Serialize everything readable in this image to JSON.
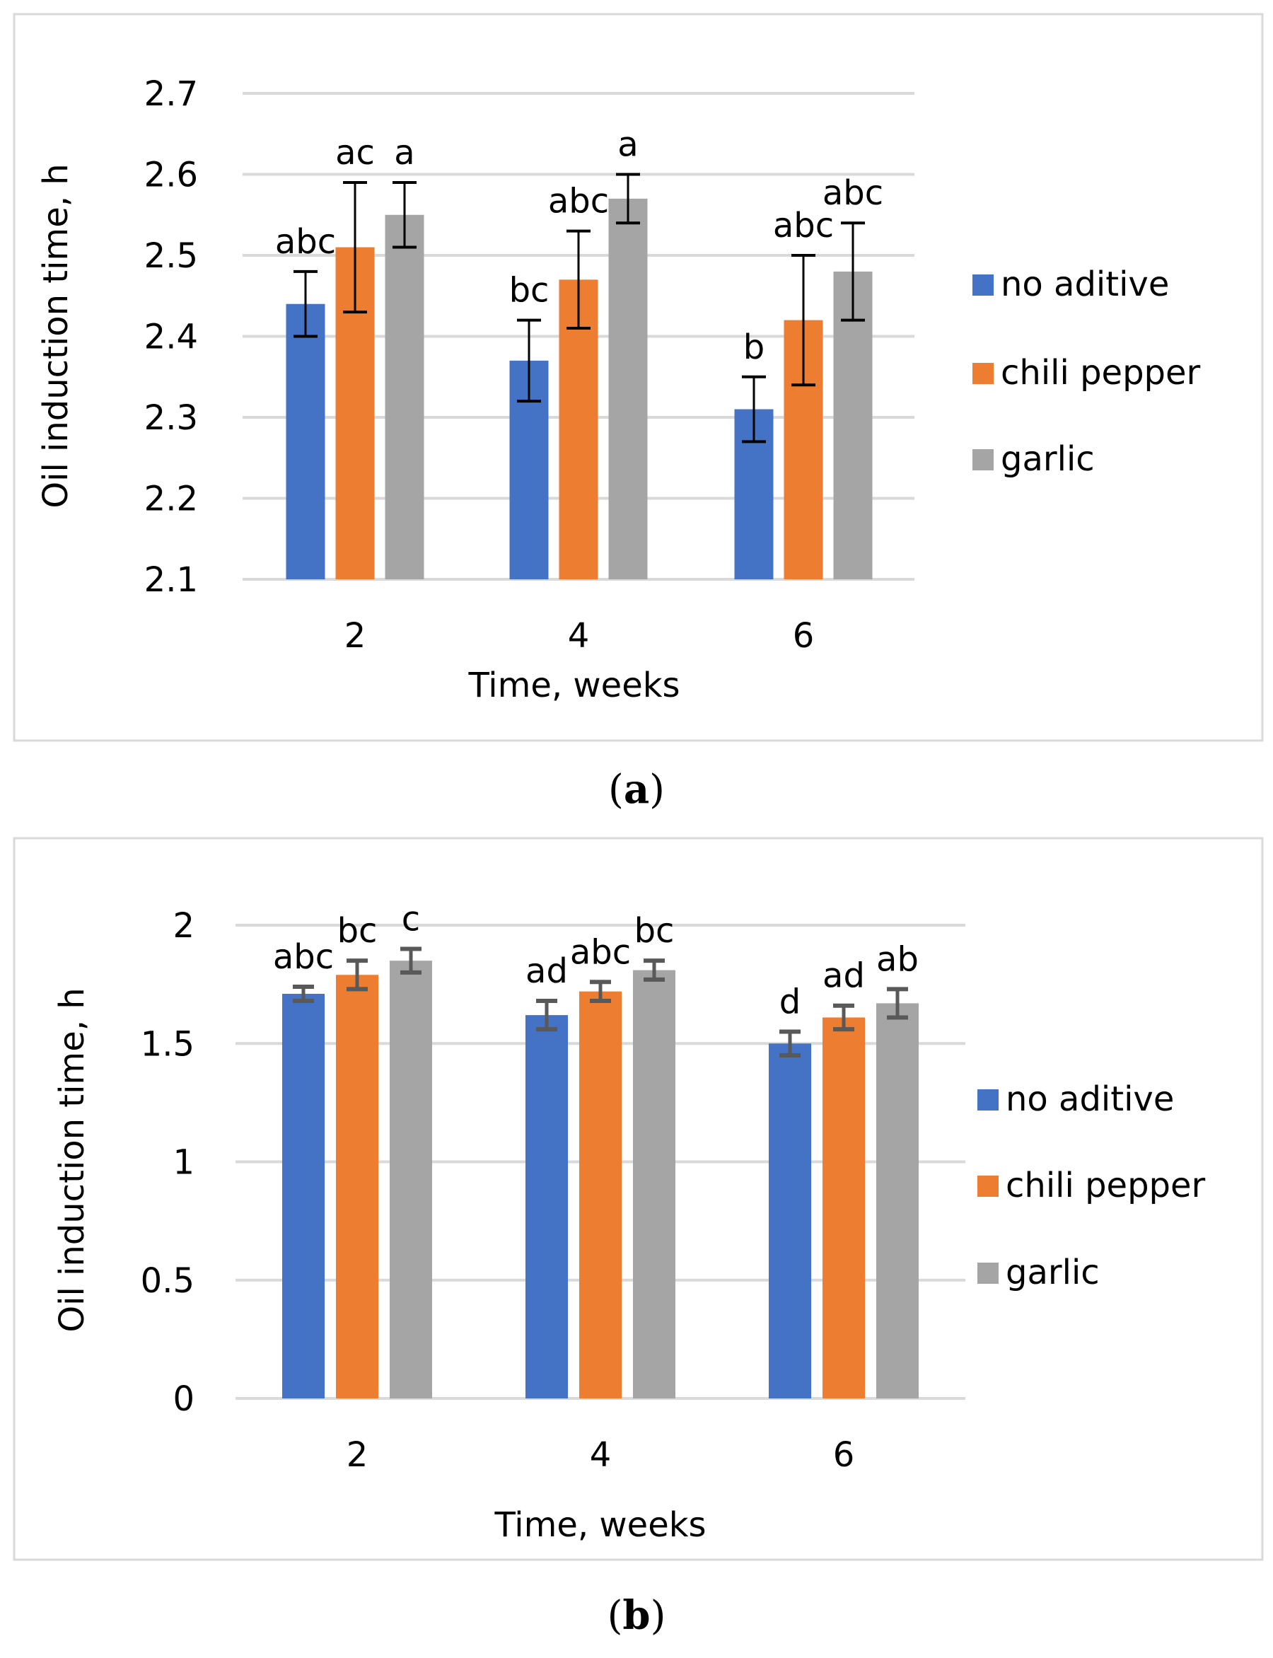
{
  "colors": {
    "no_aditive": "#4472C4",
    "chili_pepper": "#ED7D31",
    "garlic": "#A5A5A5",
    "grid": "#D9D9D9"
  },
  "chart_data": [
    {
      "type": "bar",
      "panel_label": "a",
      "xlabel": "Time, weeks",
      "ylabel": "Oil induction time, h",
      "ylim": [
        2.1,
        2.7
      ],
      "yticks": [
        "2.1",
        "2.2",
        "2.3",
        "2.4",
        "2.5",
        "2.6",
        "2.7"
      ],
      "ytick_values": [
        2.1,
        2.2,
        2.3,
        2.4,
        2.5,
        2.6,
        2.7
      ],
      "categories": [
        "2",
        "4",
        "6"
      ],
      "grid": true,
      "legend_position": "right",
      "error_color": "#000000",
      "series": [
        {
          "name": "no aditive",
          "key": "no_aditive",
          "values": [
            2.44,
            2.37,
            2.31
          ],
          "errors": [
            0.04,
            0.05,
            0.04
          ],
          "labels": [
            "abc",
            "bc",
            "b"
          ]
        },
        {
          "name": "chili pepper",
          "key": "chili_pepper",
          "values": [
            2.51,
            2.47,
            2.42
          ],
          "errors": [
            0.08,
            0.06,
            0.08
          ],
          "labels": [
            "ac",
            "abc",
            "abc"
          ]
        },
        {
          "name": "garlic",
          "key": "garlic",
          "values": [
            2.55,
            2.57,
            2.48
          ],
          "errors": [
            0.04,
            0.03,
            0.06
          ],
          "labels": [
            "a",
            "a",
            "abc"
          ]
        }
      ]
    },
    {
      "type": "bar",
      "panel_label": "b",
      "xlabel": "Time, weeks",
      "ylabel": "Oil induction time, h",
      "ylim": [
        0,
        2
      ],
      "yticks": [
        "0",
        "0.5",
        "1",
        "1.5",
        "2"
      ],
      "ytick_values": [
        0,
        0.5,
        1,
        1.5,
        2
      ],
      "categories": [
        "2",
        "4",
        "6"
      ],
      "grid": true,
      "legend_position": "right",
      "error_color": "#595959",
      "series": [
        {
          "name": "no aditive",
          "key": "no_aditive",
          "values": [
            1.71,
            1.62,
            1.5
          ],
          "errors": [
            0.03,
            0.06,
            0.05
          ],
          "labels": [
            "abc",
            "ad",
            "d"
          ]
        },
        {
          "name": "chili pepper",
          "key": "chili_pepper",
          "values": [
            1.79,
            1.72,
            1.61
          ],
          "errors": [
            0.06,
            0.04,
            0.05
          ],
          "labels": [
            "bc",
            "abc",
            "ad"
          ]
        },
        {
          "name": "garlic",
          "key": "garlic",
          "values": [
            1.85,
            1.81,
            1.67
          ],
          "errors": [
            0.05,
            0.04,
            0.06
          ],
          "labels": [
            "c",
            "bc",
            "ab"
          ]
        }
      ]
    }
  ]
}
